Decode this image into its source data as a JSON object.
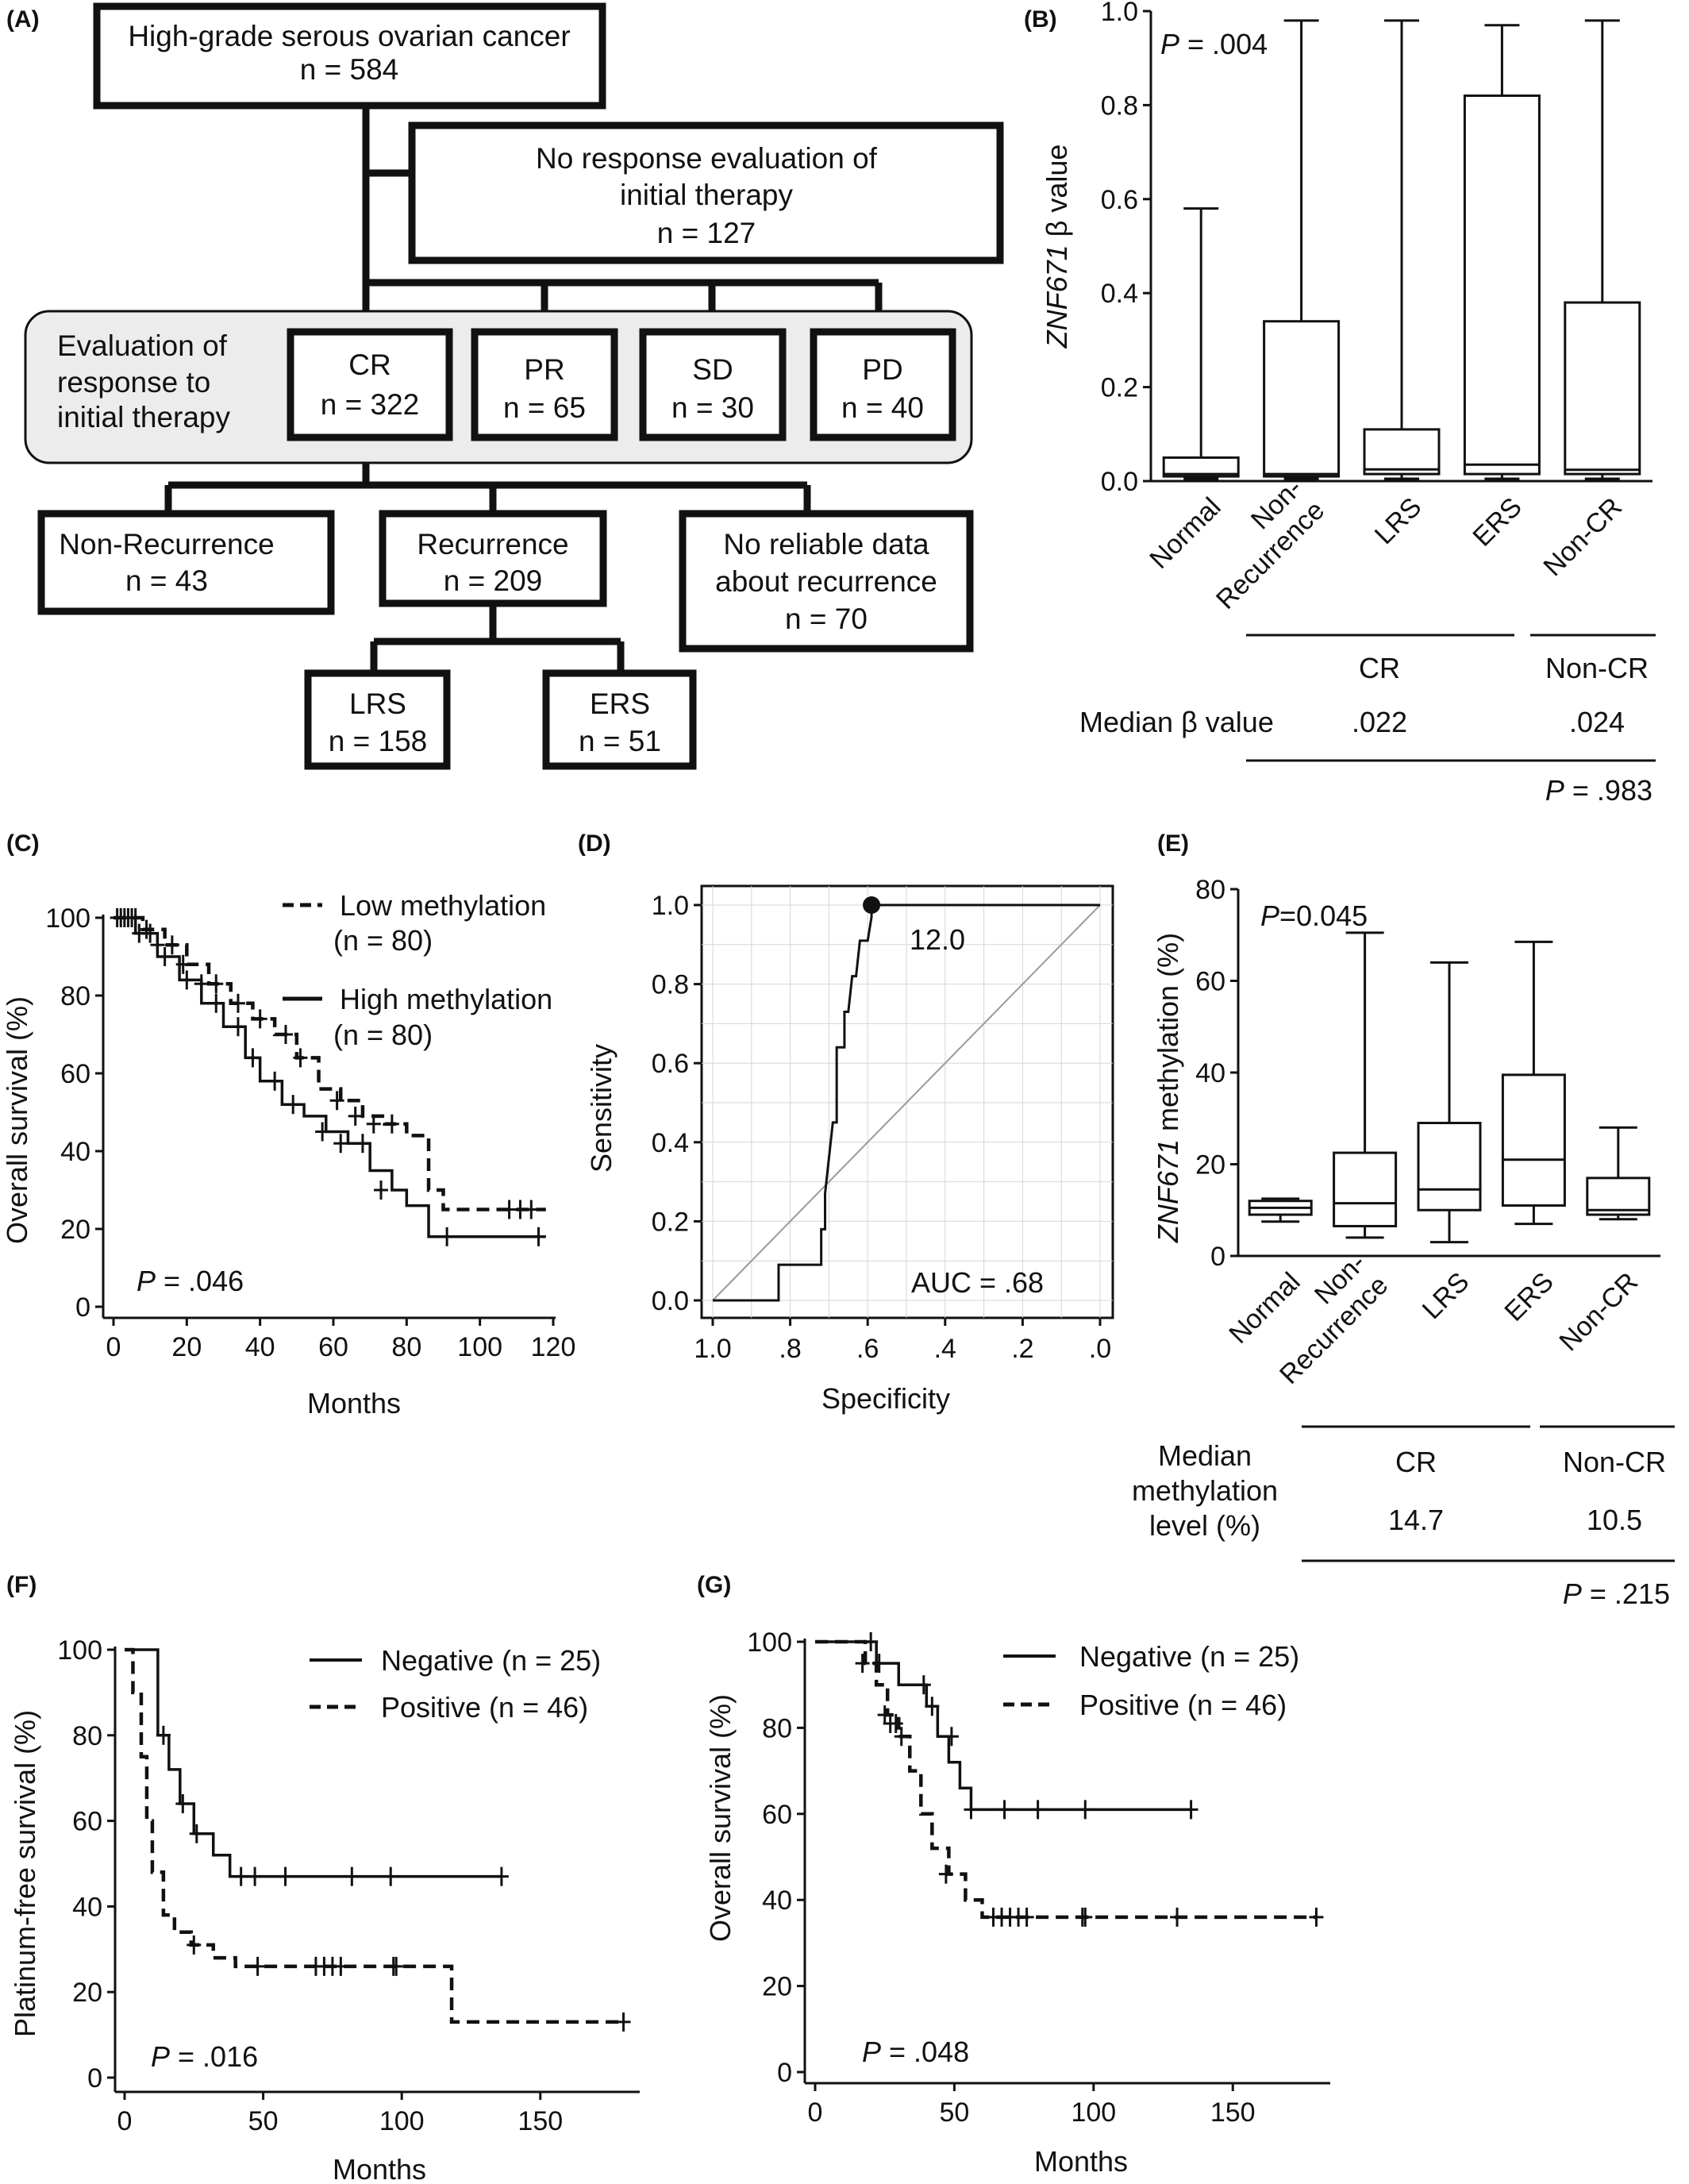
{
  "panels": {
    "A": "(A)",
    "B": "(B)",
    "C": "(C)",
    "D": "(D)",
    "E": "(E)",
    "F": "(F)",
    "G": "(G)"
  },
  "flowchart": {
    "top": {
      "line1": "High-grade serous ovarian cancer",
      "line2": "n = 584"
    },
    "no_eval": {
      "line1": "No response evaluation of",
      "line2": "initial therapy",
      "line3": "n = 127"
    },
    "eval_label": {
      "line1": "Evaluation of",
      "line2": "response to",
      "line3": "initial therapy"
    },
    "cr": {
      "line1": "CR",
      "line2": "n = 322"
    },
    "pr": {
      "line1": "PR",
      "line2": "n = 65"
    },
    "sd": {
      "line1": "SD",
      "line2": "n = 30"
    },
    "pd": {
      "line1": "PD",
      "line2": "n = 40"
    },
    "nonrec": {
      "line1": "Non-Recurrence",
      "line2": "n = 43"
    },
    "rec": {
      "line1": "Recurrence",
      "line2": "n = 209"
    },
    "norel": {
      "line1": "No reliable data",
      "line2": "about recurrence",
      "line3": "n = 70"
    },
    "lrs": {
      "line1": "LRS",
      "line2": "n = 158"
    },
    "ers": {
      "line1": "ERS",
      "line2": "n = 51"
    }
  },
  "chart_data": [
    {
      "panel": "B",
      "type": "box",
      "ylabel_italic": "ZNF671",
      "ylabel_rest": " β value",
      "ylim": [
        0,
        1.0
      ],
      "yticks": [
        "0.0",
        "0.2",
        "0.4",
        "0.6",
        "0.8",
        "1.0"
      ],
      "categories": [
        "Normal",
        "Non-Recurrence",
        "LRS",
        "ERS",
        "Non-CR"
      ],
      "category_lines": [
        [
          "Normal"
        ],
        [
          "Non-",
          "Recurrence"
        ],
        [
          "LRS"
        ],
        [
          "ERS"
        ],
        [
          "Non-CR"
        ]
      ],
      "boxes": [
        {
          "min": 0.005,
          "q1": 0.01,
          "median": 0.015,
          "q3": 0.05,
          "max": 0.58
        },
        {
          "min": 0.005,
          "q1": 0.01,
          "median": 0.015,
          "q3": 0.34,
          "max": 0.98
        },
        {
          "min": 0.005,
          "q1": 0.015,
          "median": 0.025,
          "q3": 0.11,
          "max": 0.98
        },
        {
          "min": 0.005,
          "q1": 0.015,
          "median": 0.035,
          "q3": 0.82,
          "max": 0.97
        },
        {
          "min": 0.005,
          "q1": 0.015,
          "median": 0.024,
          "q3": 0.38,
          "max": 0.98
        }
      ],
      "p_label": "P",
      "p_value": " = .004",
      "table": {
        "group1": "CR",
        "group2": "Non-CR",
        "row_label": "Median β value",
        "val1": ".022",
        "val2": ".024",
        "p_label": "P",
        "p_value": " = .983"
      }
    },
    {
      "panel": "C",
      "type": "line",
      "xlabel": "Months",
      "ylabel": "Overall survival (%)",
      "xlim": [
        0,
        120
      ],
      "ylim": [
        0,
        100
      ],
      "xticks": [
        "0",
        "20",
        "40",
        "60",
        "80",
        "100",
        "120"
      ],
      "yticks": [
        "0",
        "20",
        "40",
        "60",
        "80",
        "100"
      ],
      "series": [
        {
          "name": "Low methylation",
          "n_label": "(n = 80)",
          "style": "dashed",
          "x": [
            0,
            8,
            14,
            20,
            26,
            32,
            38,
            44,
            50,
            56,
            62,
            68,
            74,
            80,
            86,
            90,
            118
          ],
          "y": [
            100,
            97,
            93,
            88,
            83,
            78,
            74,
            70,
            64,
            56,
            53,
            49,
            47,
            44,
            30,
            25,
            25
          ],
          "censor_x": [
            2,
            4,
            6,
            9,
            12,
            16,
            19,
            24,
            28,
            34,
            40,
            47,
            51,
            61,
            66,
            71,
            76,
            108,
            111,
            114
          ],
          "censor_y": [
            100,
            100,
            100,
            97,
            93,
            93,
            88,
            83,
            83,
            78,
            74,
            70,
            64,
            53,
            49,
            47,
            47,
            25,
            25,
            25
          ]
        },
        {
          "name": "High methylation",
          "n_label": "(n = 80)",
          "style": "solid",
          "x": [
            0,
            6,
            12,
            18,
            24,
            30,
            36,
            40,
            46,
            52,
            58,
            64,
            70,
            76,
            80,
            86,
            118
          ],
          "y": [
            100,
            96,
            90,
            84,
            78,
            72,
            64,
            58,
            52,
            49,
            45,
            42,
            35,
            30,
            26,
            18,
            18
          ],
          "censor_x": [
            1,
            3,
            5,
            7,
            10,
            14,
            20,
            28,
            34,
            38,
            44,
            49,
            57,
            62,
            68,
            73,
            91,
            116
          ],
          "censor_y": [
            100,
            100,
            100,
            96,
            96,
            90,
            84,
            78,
            72,
            64,
            58,
            52,
            45,
            42,
            42,
            30,
            18,
            18
          ]
        }
      ],
      "p_label": "P",
      "p_value": " = .046"
    },
    {
      "panel": "D",
      "type": "line",
      "xlabel": "Specificity",
      "ylabel": "Sensitivity",
      "xlim": [
        1.0,
        0.0
      ],
      "ylim": [
        0,
        1.0
      ],
      "xticks": [
        "1.0",
        ".8",
        ".6",
        ".4",
        ".2",
        ".0"
      ],
      "yticks": [
        "0.0",
        "0.2",
        "0.4",
        "0.6",
        "0.8",
        "1.0"
      ],
      "roc": {
        "specificity": [
          1.0,
          0.83,
          0.83,
          0.72,
          0.72,
          0.71,
          0.71,
          0.69,
          0.68,
          0.68,
          0.66,
          0.66,
          0.65,
          0.64,
          0.63,
          0.62,
          0.6,
          0.59,
          0.59,
          0.0
        ],
        "sensitivity": [
          0.0,
          0.0,
          0.09,
          0.09,
          0.18,
          0.18,
          0.27,
          0.45,
          0.45,
          0.64,
          0.64,
          0.73,
          0.73,
          0.82,
          0.82,
          0.91,
          0.91,
          0.97,
          1.0,
          1.0
        ]
      },
      "cutoff_point": {
        "specificity": 0.59,
        "sensitivity": 1.0,
        "label": "12.0"
      },
      "auc_label": "AUC = .68"
    },
    {
      "panel": "E",
      "type": "box",
      "ylabel_italic": "ZNF671",
      "ylabel_rest": "  methylation (%)",
      "ylim": [
        0,
        80
      ],
      "yticks": [
        "0",
        "20",
        "40",
        "60",
        "80"
      ],
      "categories": [
        "Normal",
        "Non-Recurrence",
        "LRS",
        "ERS",
        "Non-CR"
      ],
      "category_lines": [
        [
          "Normal"
        ],
        [
          "Non-",
          "Recurrence"
        ],
        [
          "LRS"
        ],
        [
          "ERS"
        ],
        [
          "Non-CR"
        ]
      ],
      "boxes": [
        {
          "min": 7.5,
          "q1": 9,
          "median": 10.5,
          "q3": 12,
          "max": 12.5
        },
        {
          "min": 4,
          "q1": 6.5,
          "median": 11.5,
          "q3": 22.5,
          "max": 70.5
        },
        {
          "min": 3,
          "q1": 10,
          "median": 14.5,
          "q3": 29,
          "max": 64
        },
        {
          "min": 7,
          "q1": 11,
          "median": 21,
          "q3": 39.5,
          "max": 68.5
        },
        {
          "min": 8,
          "q1": 9,
          "median": 10,
          "q3": 17,
          "max": 28
        }
      ],
      "p_label": "P",
      "p_value": "=0.045",
      "table": {
        "group1": "CR",
        "group2": "Non-CR",
        "row_label_lines": [
          "Median",
          "methylation",
          "level (%)"
        ],
        "val1": "14.7",
        "val2": "10.5",
        "p_label": "P",
        "p_value": " = .215"
      }
    },
    {
      "panel": "F",
      "type": "line",
      "xlabel": "Months",
      "ylabel": "Platinum-free survival (%)",
      "xlim": [
        0,
        185
      ],
      "ylim": [
        0,
        100
      ],
      "xticks": [
        "0",
        "50",
        "100",
        "150"
      ],
      "yticks": [
        "0",
        "20",
        "40",
        "60",
        "80",
        "100"
      ],
      "series": [
        {
          "name": "Negative (n = 25)",
          "style": "solid",
          "x": [
            0,
            9,
            12,
            16,
            20,
            25,
            32,
            38,
            136
          ],
          "y": [
            100,
            100,
            80,
            72,
            64,
            57,
            52,
            47,
            47
          ],
          "censor_x": [
            14,
            21,
            26,
            42,
            47,
            58,
            82,
            96,
            136
          ],
          "censor_y": [
            80,
            64,
            57,
            47,
            47,
            47,
            47,
            47,
            47
          ]
        },
        {
          "name": "Positive (n = 46)",
          "style": "dashed",
          "x": [
            0,
            3,
            6,
            8,
            10,
            14,
            18,
            24,
            32,
            40,
            118,
            180
          ],
          "y": [
            100,
            90,
            75,
            60,
            48,
            38,
            34,
            31,
            28,
            26,
            13,
            13
          ],
          "censor_x": [
            25,
            48,
            69,
            72,
            75,
            78,
            97,
            98,
            180
          ],
          "censor_y": [
            31,
            26,
            26,
            26,
            26,
            26,
            26,
            26,
            13
          ]
        }
      ],
      "p_label": "P",
      "p_value": " = .016"
    },
    {
      "panel": "G",
      "type": "line",
      "xlabel": "Months",
      "ylabel": "Overall survival (%)",
      "xlim": [
        0,
        185
      ],
      "ylim": [
        0,
        100
      ],
      "xticks": [
        "0",
        "50",
        "100",
        "150"
      ],
      "yticks": [
        "0",
        "20",
        "40",
        "60",
        "80",
        "100"
      ],
      "series": [
        {
          "name": "Negative (n = 25)",
          "style": "solid",
          "x": [
            0,
            14,
            22,
            30,
            40,
            44,
            48,
            52,
            56,
            135
          ],
          "y": [
            100,
            100,
            95,
            90,
            85,
            78,
            72,
            66,
            61,
            61
          ],
          "censor_x": [
            20,
            23,
            39,
            42,
            49,
            56,
            68,
            80,
            97,
            135
          ],
          "censor_y": [
            100,
            95,
            90,
            85,
            78,
            61,
            61,
            61,
            61,
            61
          ]
        },
        {
          "name": "Positive (n = 46)",
          "style": "dashed",
          "x": [
            0,
            12,
            18,
            22,
            26,
            30,
            34,
            38,
            42,
            48,
            54,
            60,
            180
          ],
          "y": [
            100,
            100,
            95,
            90,
            83,
            78,
            70,
            60,
            52,
            46,
            40,
            36,
            36
          ],
          "censor_x": [
            17,
            25,
            27,
            29,
            31,
            47,
            64,
            67,
            70,
            73,
            76,
            96,
            97,
            130,
            180
          ],
          "censor_y": [
            95,
            83,
            81,
            81,
            78,
            46,
            36,
            36,
            36,
            36,
            36,
            36,
            36,
            36,
            36
          ]
        }
      ],
      "p_label": "P",
      "p_value": " = .048"
    }
  ]
}
